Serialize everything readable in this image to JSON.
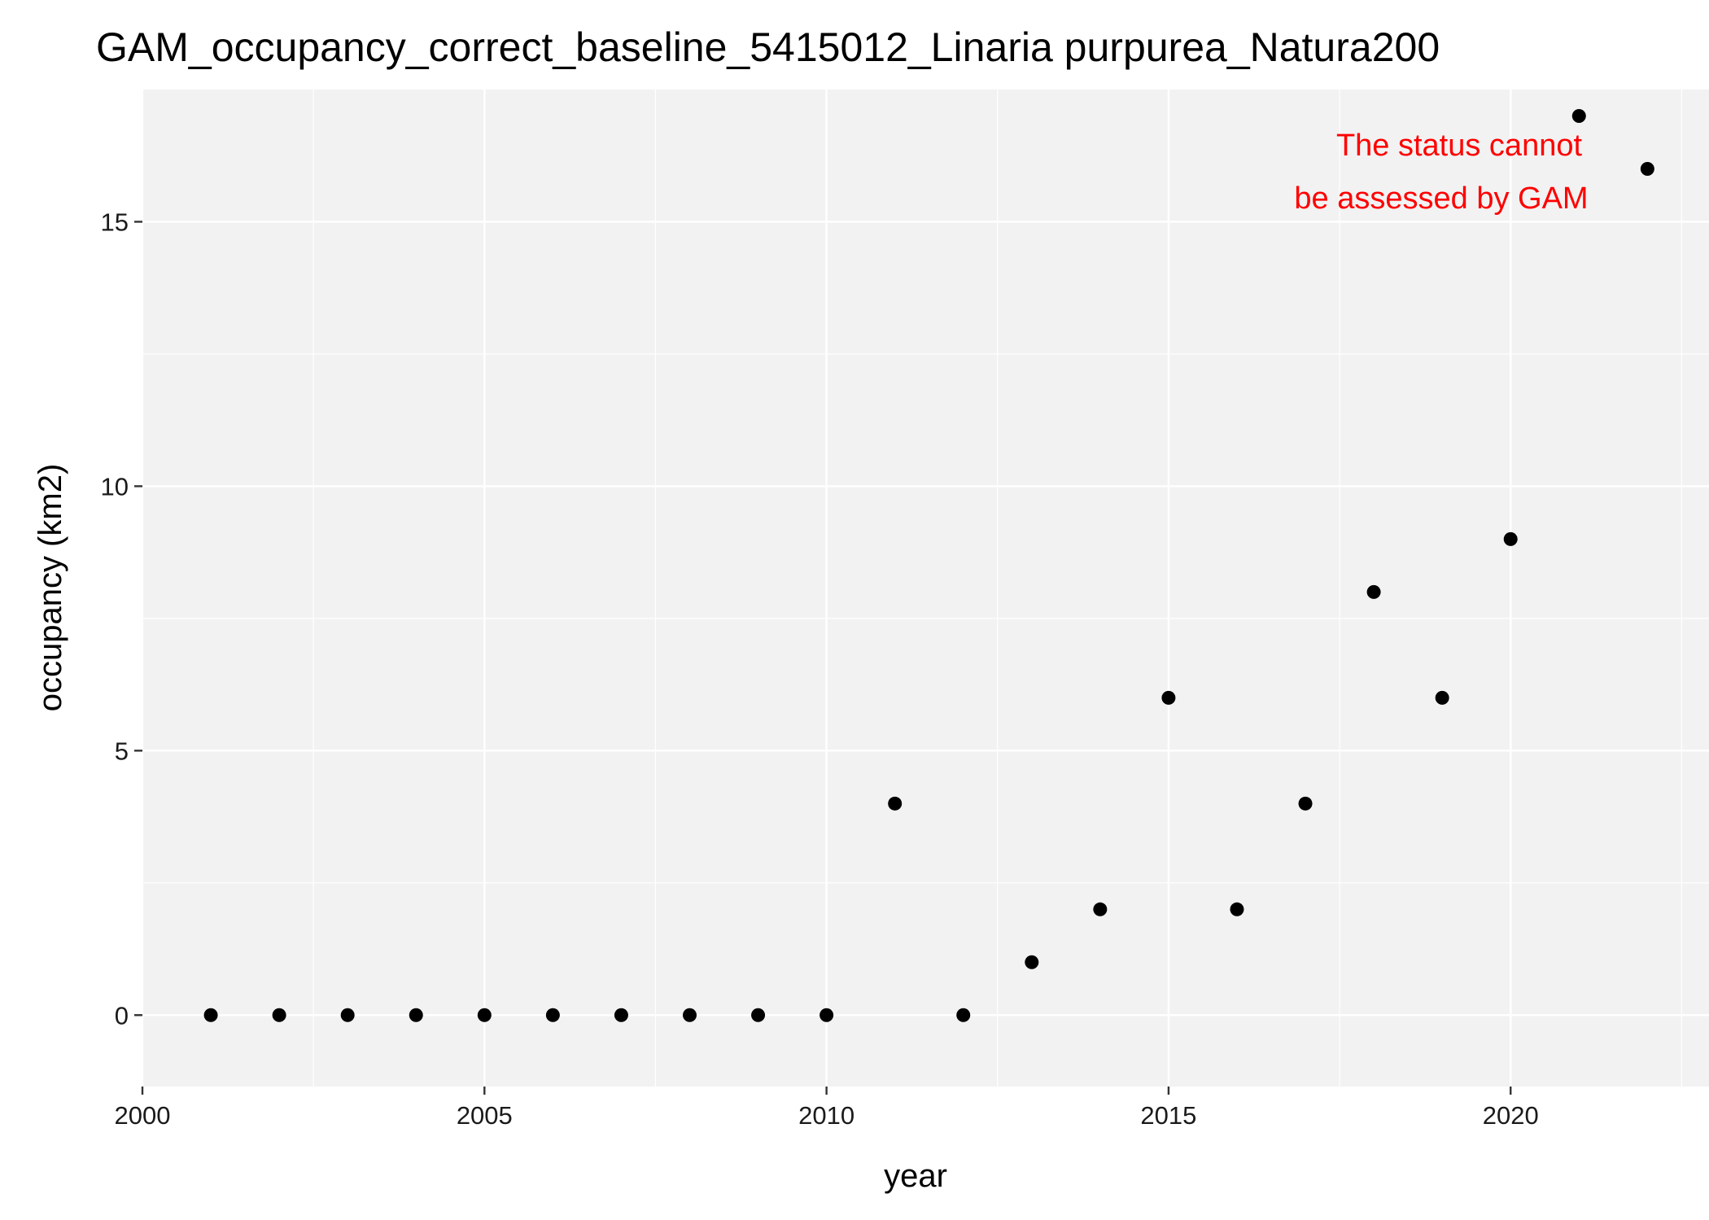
{
  "chart_data": {
    "type": "scatter",
    "title": "GAM_occupancy_correct_baseline_5415012_Linaria purpurea_Natura200",
    "xlabel": "year",
    "ylabel": "occupancy (km2)",
    "xlim": [
      2000,
      2022.9
    ],
    "ylim": [
      -1.35,
      17.5
    ],
    "x_ticks": [
      2000,
      2005,
      2010,
      2015,
      2020
    ],
    "x_tick_labels": [
      "2000",
      "2005",
      "2010",
      "2015",
      "2020"
    ],
    "y_ticks": [
      0,
      5,
      10,
      15
    ],
    "y_tick_labels": [
      "0",
      "5",
      "10",
      "15"
    ],
    "grid": true,
    "legend": "none",
    "annotation": {
      "lines": [
        "The status cannot",
        "be assessed by GAM"
      ],
      "color": "#ff0000",
      "placement": "top-right"
    },
    "point_color": "#000000",
    "panel_color": "#f2f2f2",
    "x": [
      2001,
      2002,
      2003,
      2004,
      2005,
      2006,
      2007,
      2008,
      2009,
      2010,
      2011,
      2012,
      2013,
      2014,
      2015,
      2016,
      2017,
      2018,
      2019,
      2020,
      2021,
      2022
    ],
    "y": [
      0,
      0,
      0,
      0,
      0,
      0,
      0,
      0,
      0,
      0,
      4,
      0,
      1,
      2,
      6,
      2,
      4,
      8,
      6,
      9,
      17,
      16
    ]
  }
}
